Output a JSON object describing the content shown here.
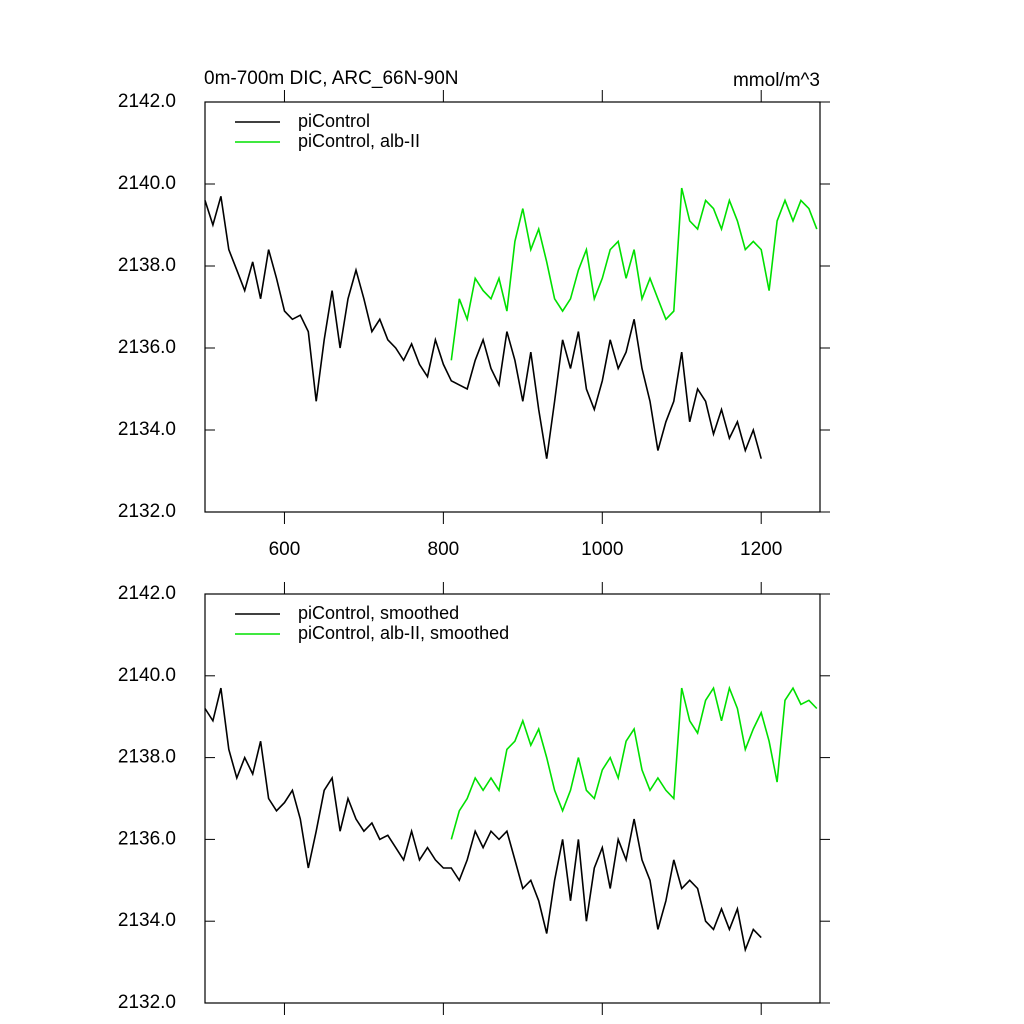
{
  "chart_data": [
    {
      "type": "line",
      "title": "0m-700m DIC, ARC_66N-90N",
      "units": "mmol/m^3",
      "xlim": [
        500,
        1274
      ],
      "xticks": [
        600,
        800,
        1000,
        1200
      ],
      "show_xtick_labels": true,
      "ylim": [
        2132,
        2142
      ],
      "yticks": [
        {
          "value": 2132,
          "label": "2132.0"
        },
        {
          "value": 2134,
          "label": "2134.0"
        },
        {
          "value": 2136,
          "label": "2136.0"
        },
        {
          "value": 2138,
          "label": "2138.0"
        },
        {
          "value": 2140,
          "label": "2140.0"
        },
        {
          "value": 2142,
          "label": "2142.0"
        }
      ],
      "legend": "upper left",
      "series": [
        {
          "name": "piControl",
          "color": "#000000",
          "x": [
            500,
            510,
            520,
            530,
            540,
            550,
            560,
            570,
            580,
            590,
            600,
            610,
            620,
            630,
            640,
            650,
            660,
            670,
            680,
            690,
            700,
            710,
            720,
            730,
            740,
            750,
            760,
            770,
            780,
            790,
            800,
            810,
            820,
            830,
            840,
            850,
            860,
            870,
            880,
            890,
            900,
            910,
            920,
            930,
            940,
            950,
            960,
            970,
            980,
            990,
            1000,
            1010,
            1020,
            1030,
            1040,
            1050,
            1060,
            1070,
            1080,
            1090,
            1100,
            1110,
            1120,
            1130,
            1140,
            1150,
            1160,
            1170,
            1180,
            1190,
            1200
          ],
          "values": [
            2139.6,
            2139.0,
            2139.7,
            2138.4,
            2137.9,
            2137.4,
            2138.1,
            2137.2,
            2138.4,
            2137.7,
            2136.9,
            2136.7,
            2136.8,
            2136.4,
            2134.7,
            2136.2,
            2137.4,
            2136.0,
            2137.2,
            2137.9,
            2137.2,
            2136.4,
            2136.7,
            2136.2,
            2136.0,
            2135.7,
            2136.1,
            2135.6,
            2135.3,
            2136.2,
            2135.6,
            2135.2,
            2135.1,
            2135.0,
            2135.7,
            2136.2,
            2135.5,
            2135.1,
            2136.4,
            2135.7,
            2134.7,
            2135.9,
            2134.5,
            2133.3,
            2134.7,
            2136.2,
            2135.5,
            2136.4,
            2135.0,
            2134.5,
            2135.2,
            2136.2,
            2135.5,
            2135.9,
            2136.7,
            2135.5,
            2134.7,
            2133.5,
            2134.2,
            2134.7,
            2135.9,
            2134.2,
            2135.0,
            2134.7,
            2133.9,
            2134.5,
            2133.8,
            2134.2,
            2133.5,
            2134.0,
            2133.3
          ]
        },
        {
          "name": "piControl, alb-II",
          "color": "#00e000",
          "x": [
            810,
            820,
            830,
            840,
            850,
            860,
            870,
            880,
            890,
            900,
            910,
            920,
            930,
            940,
            950,
            960,
            970,
            980,
            990,
            1000,
            1010,
            1020,
            1030,
            1040,
            1050,
            1060,
            1070,
            1080,
            1090,
            1100,
            1110,
            1120,
            1130,
            1140,
            1150,
            1160,
            1170,
            1180,
            1190,
            1200,
            1210,
            1220,
            1230,
            1240,
            1250,
            1260,
            1270
          ],
          "values": [
            2135.7,
            2137.2,
            2136.7,
            2137.7,
            2137.4,
            2137.2,
            2137.7,
            2136.9,
            2138.6,
            2139.4,
            2138.4,
            2138.9,
            2138.1,
            2137.2,
            2136.9,
            2137.2,
            2137.9,
            2138.4,
            2137.2,
            2137.7,
            2138.4,
            2138.6,
            2137.7,
            2138.4,
            2137.2,
            2137.7,
            2137.2,
            2136.7,
            2136.9,
            2139.9,
            2139.1,
            2138.9,
            2139.6,
            2139.4,
            2138.9,
            2139.6,
            2139.1,
            2138.4,
            2138.6,
            2138.4,
            2137.4,
            2139.1,
            2139.6,
            2139.1,
            2139.6,
            2139.4,
            2138.9
          ]
        }
      ]
    },
    {
      "type": "line",
      "xlim": [
        500,
        1274
      ],
      "xticks": [
        600,
        800,
        1000,
        1200
      ],
      "show_xtick_labels": false,
      "ylim": [
        2132,
        2142
      ],
      "yticks": [
        {
          "value": 2132,
          "label": "2132.0"
        },
        {
          "value": 2134,
          "label": "2134.0"
        },
        {
          "value": 2136,
          "label": "2136.0"
        },
        {
          "value": 2138,
          "label": "2138.0"
        },
        {
          "value": 2140,
          "label": "2140.0"
        },
        {
          "value": 2142,
          "label": "2142.0"
        }
      ],
      "legend": "upper left",
      "series": [
        {
          "name": "piControl, smoothed",
          "color": "#000000",
          "x": [
            500,
            510,
            520,
            530,
            540,
            550,
            560,
            570,
            580,
            590,
            600,
            610,
            620,
            630,
            640,
            650,
            660,
            670,
            680,
            690,
            700,
            710,
            720,
            730,
            740,
            750,
            760,
            770,
            780,
            790,
            800,
            810,
            820,
            830,
            840,
            850,
            860,
            870,
            880,
            890,
            900,
            910,
            920,
            930,
            940,
            950,
            960,
            970,
            980,
            990,
            1000,
            1010,
            1020,
            1030,
            1040,
            1050,
            1060,
            1070,
            1080,
            1090,
            1100,
            1110,
            1120,
            1130,
            1140,
            1150,
            1160,
            1170,
            1180,
            1190,
            1200
          ],
          "values": [
            2139.2,
            2138.9,
            2139.7,
            2138.2,
            2137.5,
            2138.0,
            2137.6,
            2138.4,
            2137.0,
            2136.7,
            2136.9,
            2137.2,
            2136.5,
            2135.3,
            2136.2,
            2137.2,
            2137.5,
            2136.2,
            2137.0,
            2136.5,
            2136.2,
            2136.4,
            2136.0,
            2136.1,
            2135.8,
            2135.5,
            2136.2,
            2135.5,
            2135.8,
            2135.5,
            2135.3,
            2135.3,
            2135.0,
            2135.5,
            2136.2,
            2135.8,
            2136.2,
            2136.0,
            2136.2,
            2135.5,
            2134.8,
            2135.0,
            2134.5,
            2133.7,
            2135.0,
            2136.0,
            2134.5,
            2136.0,
            2134.0,
            2135.3,
            2135.8,
            2134.8,
            2136.0,
            2135.5,
            2136.5,
            2135.5,
            2135.0,
            2133.8,
            2134.5,
            2135.5,
            2134.8,
            2135.0,
            2134.8,
            2134.0,
            2133.8,
            2134.3,
            2133.8,
            2134.3,
            2133.3,
            2133.8,
            2133.6
          ]
        },
        {
          "name": "piControl, alb-II, smoothed",
          "color": "#00e000",
          "x": [
            810,
            820,
            830,
            840,
            850,
            860,
            870,
            880,
            890,
            900,
            910,
            920,
            930,
            940,
            950,
            960,
            970,
            980,
            990,
            1000,
            1010,
            1020,
            1030,
            1040,
            1050,
            1060,
            1070,
            1080,
            1090,
            1100,
            1110,
            1120,
            1130,
            1140,
            1150,
            1160,
            1170,
            1180,
            1190,
            1200,
            1210,
            1220,
            1230,
            1240,
            1250,
            1260,
            1270
          ],
          "values": [
            2136.0,
            2136.7,
            2137.0,
            2137.5,
            2137.2,
            2137.5,
            2137.2,
            2138.2,
            2138.4,
            2138.9,
            2138.3,
            2138.7,
            2138.0,
            2137.2,
            2136.7,
            2137.2,
            2138.0,
            2137.2,
            2137.0,
            2137.7,
            2138.0,
            2137.5,
            2138.4,
            2138.7,
            2137.7,
            2137.2,
            2137.5,
            2137.2,
            2137.0,
            2139.7,
            2138.9,
            2138.6,
            2139.4,
            2139.7,
            2138.9,
            2139.7,
            2139.2,
            2138.2,
            2138.7,
            2139.1,
            2138.4,
            2137.4,
            2139.4,
            2139.7,
            2139.3,
            2139.4,
            2139.2
          ]
        }
      ]
    }
  ]
}
